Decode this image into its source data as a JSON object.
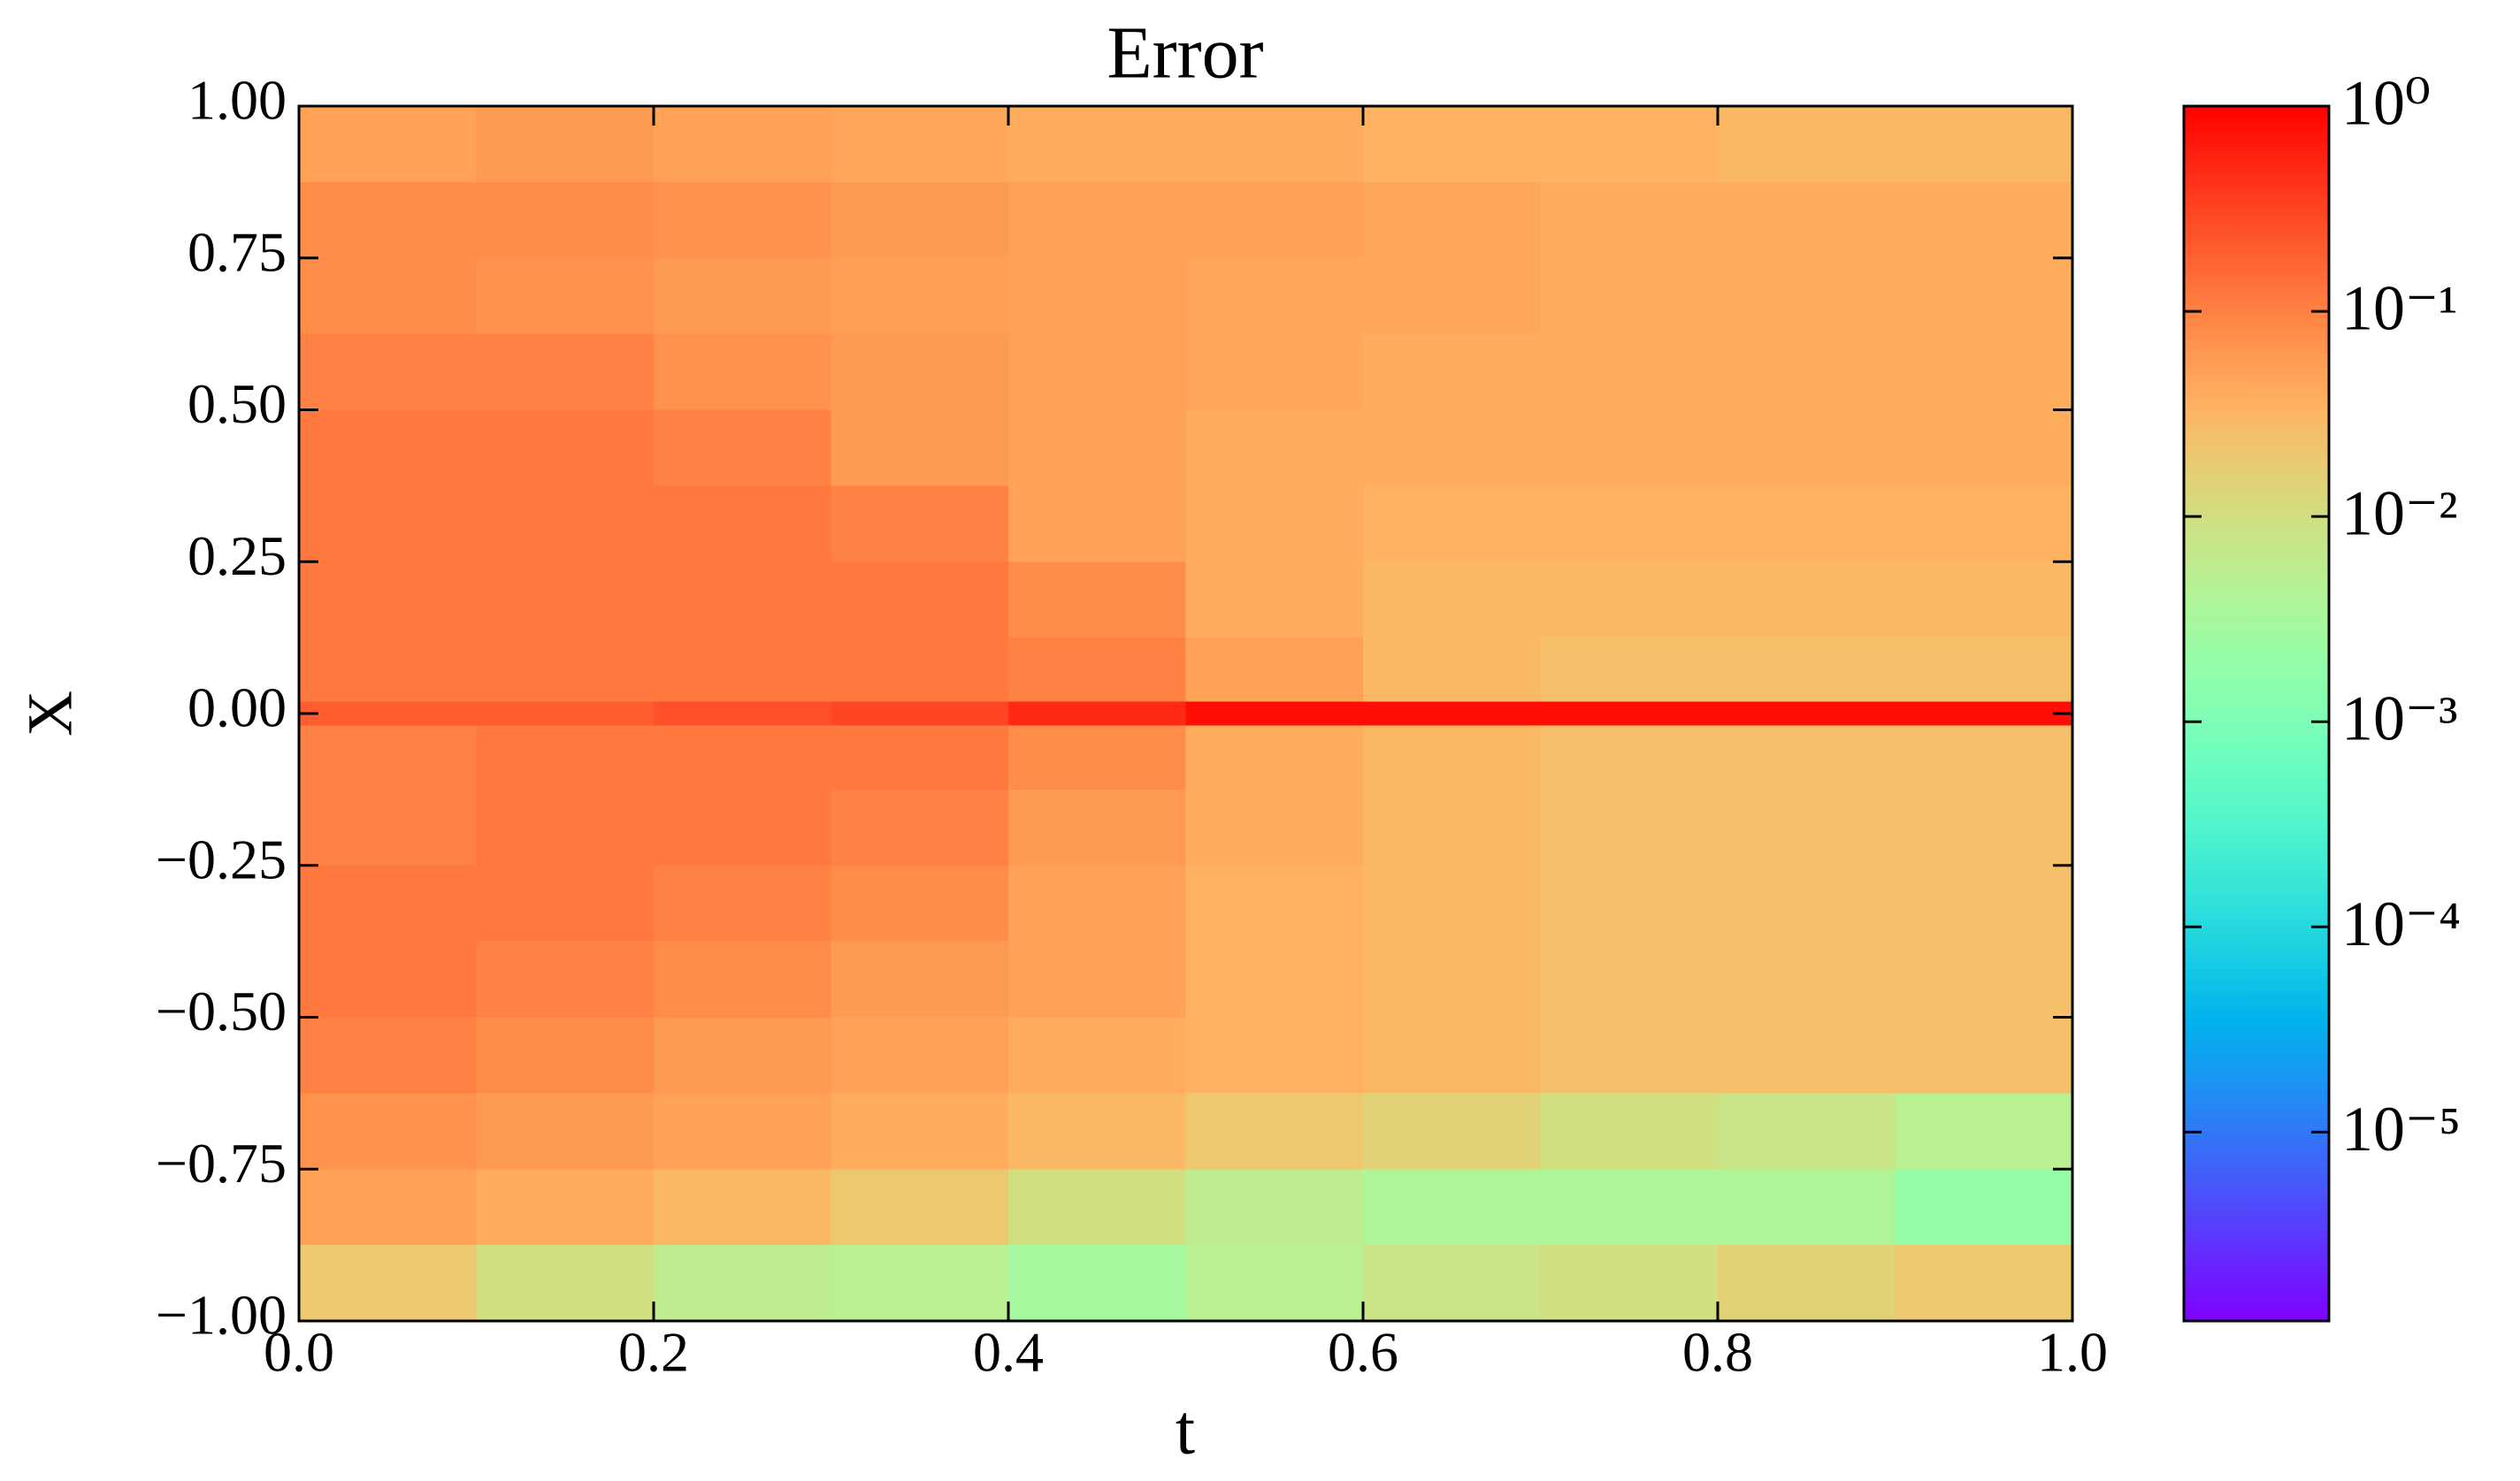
{
  "chart_data": {
    "type": "heatmap",
    "title": "Error",
    "xlabel": "t",
    "ylabel": "X",
    "x_edges": [
      0,
      0.1,
      0.2,
      0.3,
      0.4,
      0.5,
      0.6,
      0.7,
      0.8,
      0.9,
      1.0
    ],
    "y_edges": [
      1,
      0.875,
      0.75,
      0.625,
      0.5,
      0.375,
      0.25,
      0.125,
      0.02,
      -0.02,
      -0.125,
      -0.25,
      -0.375,
      -0.5,
      -0.625,
      -0.75,
      -0.875,
      -1
    ],
    "z": [
      [
        0.05,
        0.06,
        0.05,
        0.045,
        0.04,
        0.04,
        0.035,
        0.035,
        0.03,
        0.03
      ],
      [
        0.08,
        0.08,
        0.07,
        0.06,
        0.05,
        0.05,
        0.045,
        0.04,
        0.04,
        0.04
      ],
      [
        0.08,
        0.07,
        0.06,
        0.055,
        0.05,
        0.045,
        0.045,
        0.04,
        0.04,
        0.04
      ],
      [
        0.1,
        0.1,
        0.07,
        0.06,
        0.05,
        0.045,
        0.04,
        0.04,
        0.04,
        0.04
      ],
      [
        0.12,
        0.12,
        0.1,
        0.06,
        0.05,
        0.04,
        0.04,
        0.04,
        0.04,
        0.04
      ],
      [
        0.12,
        0.12,
        0.12,
        0.1,
        0.05,
        0.04,
        0.035,
        0.035,
        0.035,
        0.035
      ],
      [
        0.12,
        0.12,
        0.12,
        0.12,
        0.08,
        0.04,
        0.03,
        0.03,
        0.03,
        0.03
      ],
      [
        0.12,
        0.12,
        0.12,
        0.12,
        0.1,
        0.05,
        0.03,
        0.025,
        0.025,
        0.025
      ],
      [
        0.2,
        0.2,
        0.25,
        0.3,
        0.5,
        0.8,
        0.8,
        0.8,
        0.8,
        0.8
      ],
      [
        0.1,
        0.12,
        0.12,
        0.12,
        0.08,
        0.04,
        0.03,
        0.025,
        0.025,
        0.025
      ],
      [
        0.1,
        0.12,
        0.12,
        0.1,
        0.06,
        0.04,
        0.03,
        0.025,
        0.025,
        0.025
      ],
      [
        0.12,
        0.12,
        0.1,
        0.08,
        0.05,
        0.035,
        0.03,
        0.025,
        0.025,
        0.025
      ],
      [
        0.12,
        0.1,
        0.08,
        0.06,
        0.05,
        0.035,
        0.03,
        0.025,
        0.025,
        0.025
      ],
      [
        0.1,
        0.08,
        0.06,
        0.05,
        0.04,
        0.035,
        0.03,
        0.025,
        0.025,
        0.025
      ],
      [
        0.07,
        0.06,
        0.05,
        0.04,
        0.03,
        0.02,
        0.015,
        0.01,
        0.008,
        0.005
      ],
      [
        0.05,
        0.04,
        0.03,
        0.02,
        0.01,
        0.006,
        0.004,
        0.004,
        0.004,
        0.002
      ],
      [
        0.02,
        0.01,
        0.006,
        0.005,
        0.003,
        0.005,
        0.008,
        0.01,
        0.015,
        0.02
      ]
    ],
    "xlim": [
      0,
      1
    ],
    "ylim": [
      -1,
      1
    ],
    "xticks": [
      {
        "value": 0,
        "label": "0.0"
      },
      {
        "value": 0.2,
        "label": "0.2"
      },
      {
        "value": 0.4,
        "label": "0.4"
      },
      {
        "value": 0.6,
        "label": "0.6"
      },
      {
        "value": 0.8,
        "label": "0.8"
      },
      {
        "value": 1,
        "label": "1.0"
      }
    ],
    "yticks": [
      {
        "value": 1,
        "label": "1.00"
      },
      {
        "value": 0.75,
        "label": "0.75"
      },
      {
        "value": 0.5,
        "label": "0.50"
      },
      {
        "value": 0.25,
        "label": "0.25"
      },
      {
        "value": 0,
        "label": "0.00"
      },
      {
        "value": -0.25,
        "label": "−0.25"
      },
      {
        "value": -0.5,
        "label": "−0.50"
      },
      {
        "value": -0.75,
        "label": "−0.75"
      },
      {
        "value": -1,
        "label": "−1.00"
      }
    ],
    "colorbar": {
      "colormap": "rainbow",
      "scale": "log",
      "clim": [
        1.2e-06,
        1
      ],
      "ticks": [
        {
          "value": 1,
          "label": "10⁰"
        },
        {
          "value": 0.1,
          "label": "10⁻¹"
        },
        {
          "value": 0.01,
          "label": "10⁻²"
        },
        {
          "value": 0.001,
          "label": "10⁻³"
        },
        {
          "value": 0.0001,
          "label": "10⁻⁴"
        },
        {
          "value": 1e-05,
          "label": "10⁻⁵"
        }
      ]
    }
  }
}
